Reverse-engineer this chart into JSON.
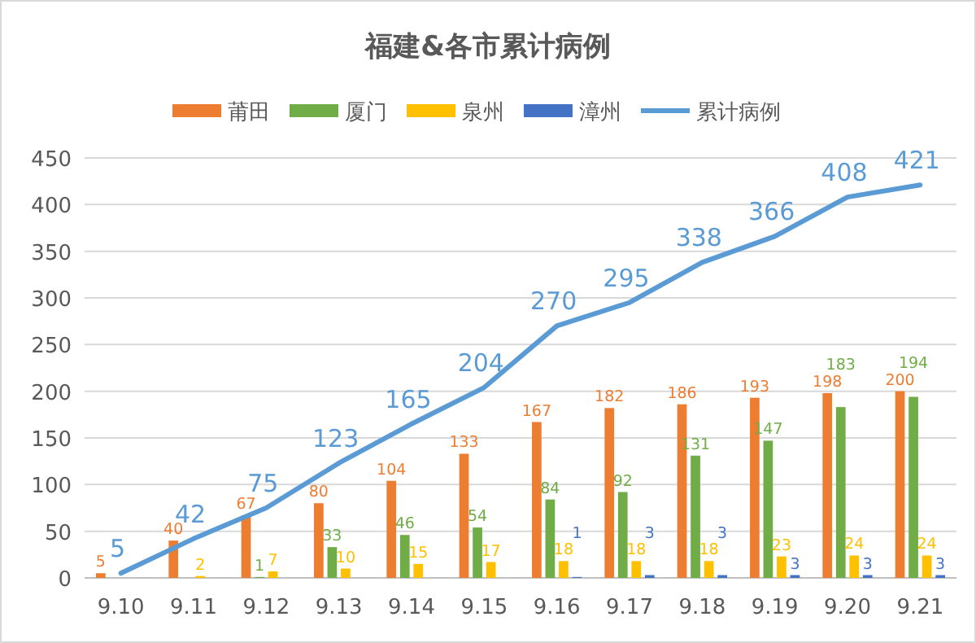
{
  "chart_data": {
    "type": "bar",
    "title": "福建&各市累计病例",
    "categories": [
      "9.10",
      "9.11",
      "9.12",
      "9.13",
      "9.14",
      "9.15",
      "9.16",
      "9.17",
      "9.18",
      "9.19",
      "9.20",
      "9.21"
    ],
    "series": [
      {
        "name": "莆田",
        "color": "#ed7d31",
        "values": [
          5,
          40,
          67,
          80,
          104,
          133,
          167,
          182,
          186,
          193,
          198,
          200
        ]
      },
      {
        "name": "厦门",
        "color": "#70ad47",
        "values": [
          null,
          null,
          1,
          33,
          46,
          54,
          84,
          92,
          131,
          147,
          183,
          194
        ]
      },
      {
        "name": "泉州",
        "color": "#ffc000",
        "values": [
          null,
          2,
          7,
          10,
          15,
          17,
          18,
          18,
          18,
          23,
          24,
          24
        ]
      },
      {
        "name": "漳州",
        "color": "#4472c4",
        "values": [
          null,
          null,
          null,
          null,
          null,
          null,
          1,
          3,
          3,
          3,
          3,
          3
        ]
      },
      {
        "name": "累计病例",
        "type": "line",
        "color": "#5b9bd5",
        "values": [
          5,
          42,
          75,
          123,
          165,
          204,
          270,
          295,
          338,
          366,
          408,
          421
        ]
      }
    ],
    "ylim": [
      0,
      450
    ],
    "yticks": [
      0,
      50,
      100,
      150,
      200,
      250,
      300,
      350,
      400,
      450
    ],
    "grid": "y",
    "legend": "top",
    "data_labels": true
  }
}
